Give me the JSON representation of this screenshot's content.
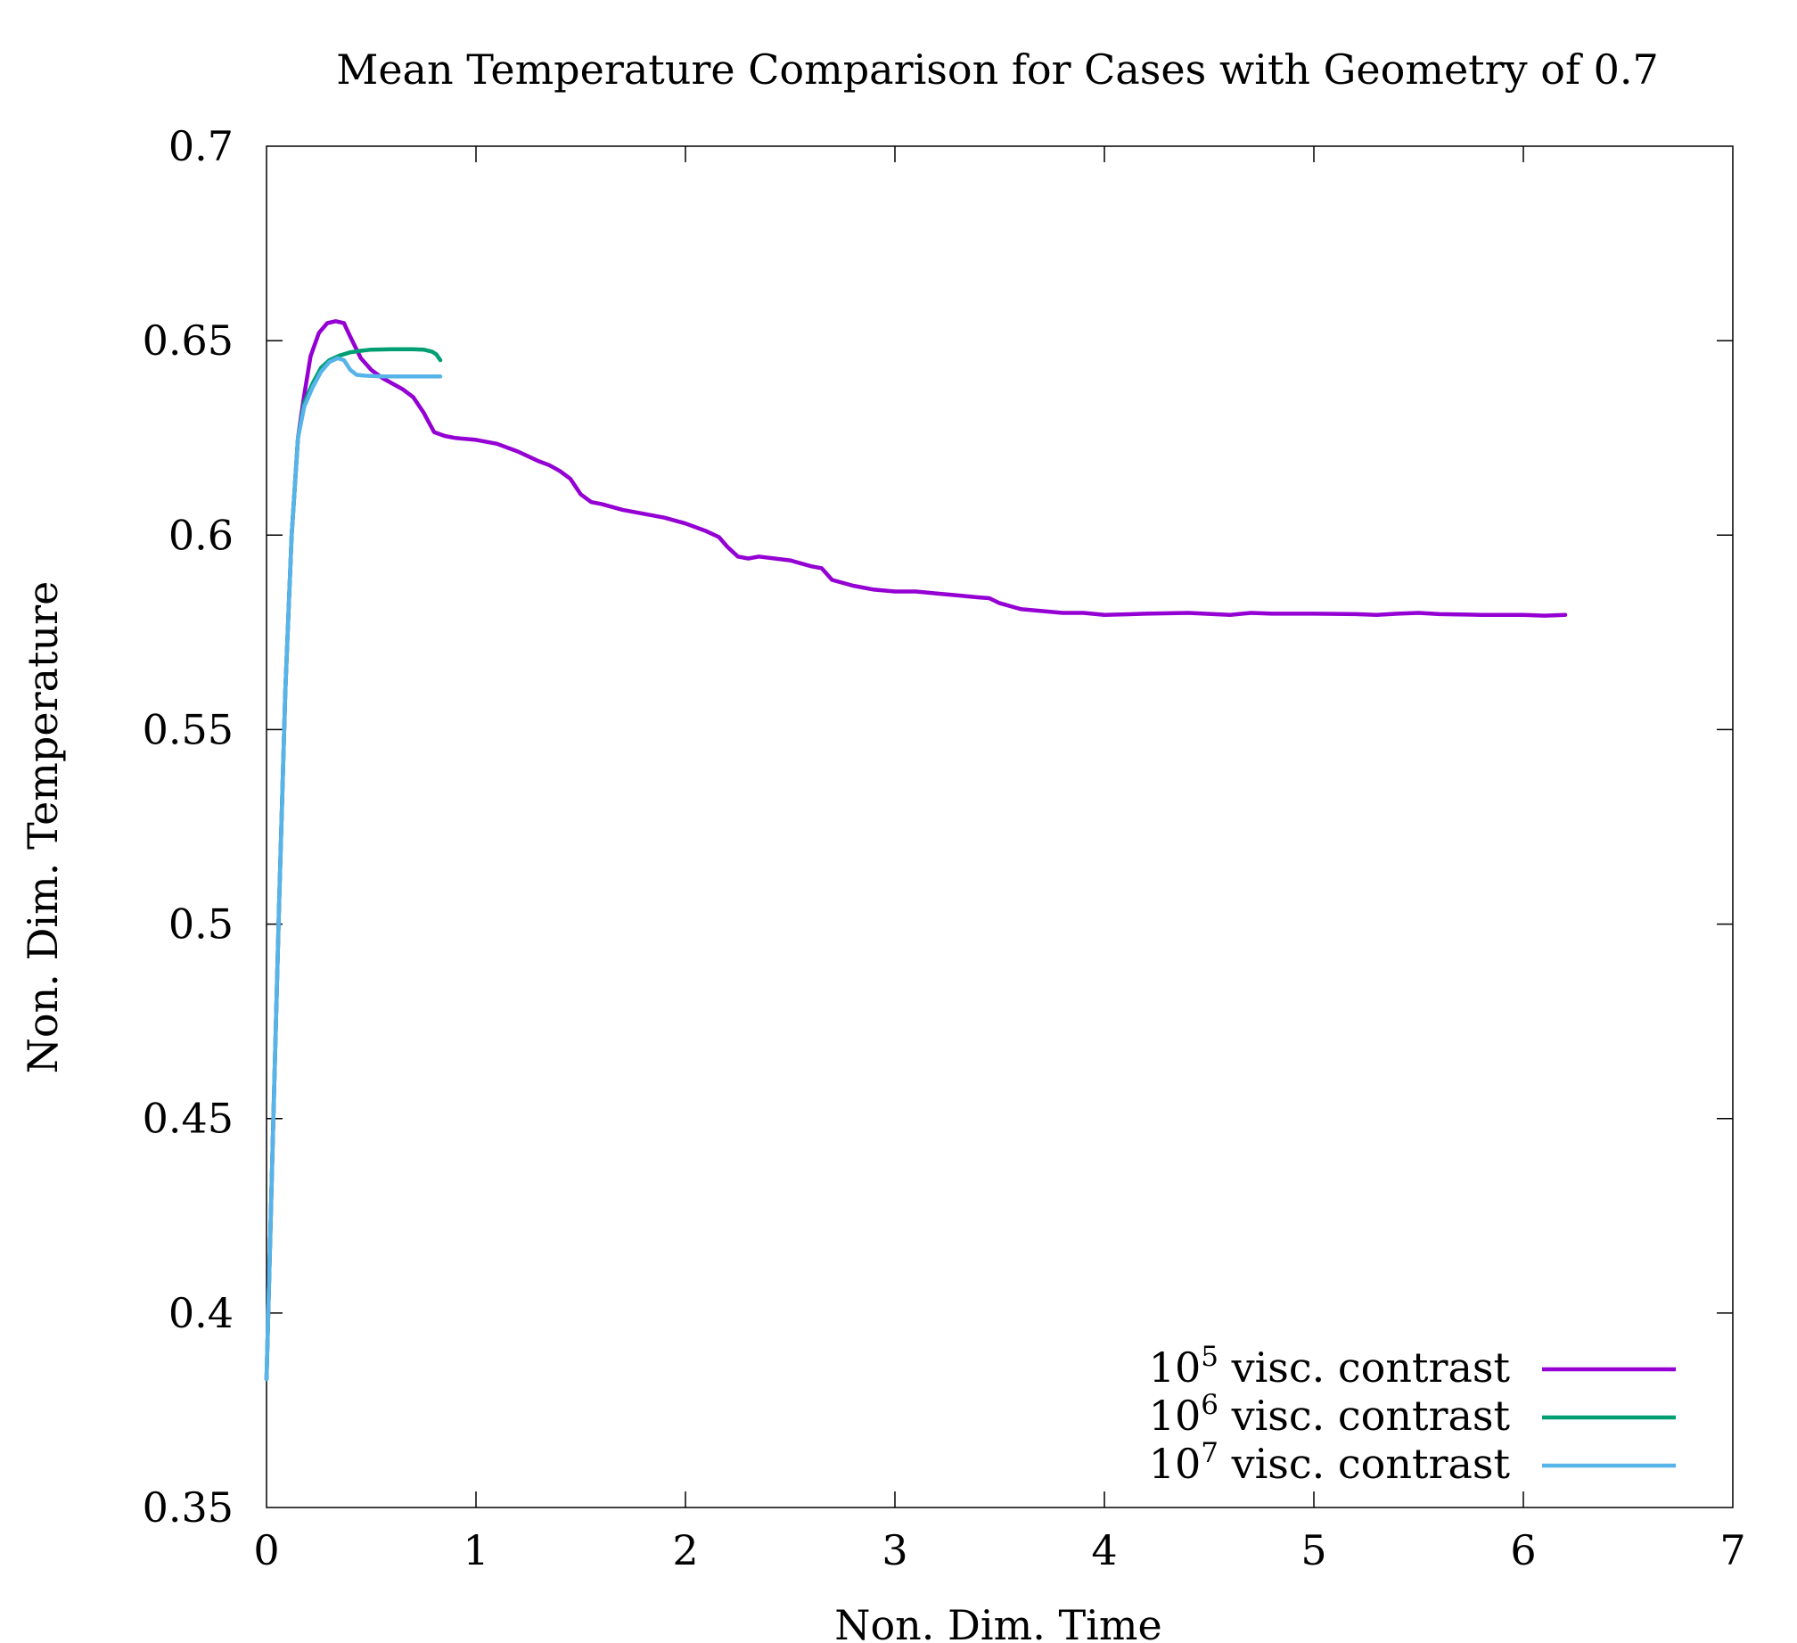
{
  "chart_data": {
    "type": "line",
    "title": "Mean Temperature Comparison for Cases with Geometry of 0.7",
    "xlabel": "Non. Dim. Time",
    "ylabel": "Non. Dim. Temperature",
    "xlim": [
      0,
      7
    ],
    "ylim": [
      0.35,
      0.7
    ],
    "x_ticks": [
      "0",
      "1",
      "2",
      "3",
      "4",
      "5",
      "6",
      "7"
    ],
    "x_tick_values": [
      0,
      1,
      2,
      3,
      4,
      5,
      6,
      7
    ],
    "y_ticks": [
      "0.35",
      "0.4",
      "0.45",
      "0.5",
      "0.55",
      "0.6",
      "0.65",
      "0.7"
    ],
    "y_tick_values": [
      0.35,
      0.4,
      0.45,
      0.5,
      0.55,
      0.6,
      0.65,
      0.7
    ],
    "grid": false,
    "legend_position": "bottom-right",
    "series": [
      {
        "name": "10^5 visc. contrast",
        "legend_base": "10",
        "legend_exponent": "5",
        "legend_text": " visc. contrast",
        "color": "#9400d3",
        "x": [
          0,
          0.03,
          0.06,
          0.09,
          0.12,
          0.15,
          0.18,
          0.21,
          0.25,
          0.29,
          0.33,
          0.37,
          0.4,
          0.45,
          0.5,
          0.55,
          0.6,
          0.65,
          0.7,
          0.75,
          0.8,
          0.85,
          0.9,
          1.0,
          1.1,
          1.2,
          1.3,
          1.35,
          1.4,
          1.45,
          1.5,
          1.55,
          1.6,
          1.7,
          1.8,
          1.9,
          2.0,
          2.1,
          2.16,
          2.2,
          2.25,
          2.3,
          2.35,
          2.5,
          2.6,
          2.65,
          2.7,
          2.8,
          2.9,
          3.0,
          3.1,
          3.2,
          3.3,
          3.4,
          3.45,
          3.5,
          3.6,
          3.7,
          3.8,
          3.9,
          4.0,
          4.2,
          4.4,
          4.6,
          4.7,
          4.8,
          5.0,
          5.2,
          5.3,
          5.4,
          5.5,
          5.6,
          5.8,
          6.0,
          6.1,
          6.2
        ],
        "values": [
          0.383,
          0.445,
          0.505,
          0.56,
          0.6,
          0.625,
          0.636,
          0.646,
          0.652,
          0.6545,
          0.655,
          0.6545,
          0.651,
          0.6455,
          0.6425,
          0.6405,
          0.639,
          0.6375,
          0.6355,
          0.6315,
          0.6265,
          0.6255,
          0.625,
          0.6245,
          0.6235,
          0.6215,
          0.619,
          0.618,
          0.6165,
          0.6145,
          0.6105,
          0.6085,
          0.608,
          0.6065,
          0.6055,
          0.6045,
          0.603,
          0.601,
          0.5995,
          0.597,
          0.5945,
          0.594,
          0.5945,
          0.5935,
          0.592,
          0.5915,
          0.5885,
          0.587,
          0.586,
          0.5855,
          0.5855,
          0.585,
          0.5845,
          0.584,
          0.5838,
          0.5825,
          0.581,
          0.5805,
          0.58,
          0.58,
          0.5795,
          0.5798,
          0.58,
          0.5795,
          0.58,
          0.5798,
          0.5798,
          0.5797,
          0.5795,
          0.5798,
          0.58,
          0.5797,
          0.5795,
          0.5795,
          0.5793,
          0.5795
        ]
      },
      {
        "name": "10^6 visc. contrast",
        "legend_base": "10",
        "legend_exponent": "6",
        "legend_text": " visc. contrast",
        "color": "#009e73",
        "x": [
          0,
          0.03,
          0.06,
          0.09,
          0.12,
          0.15,
          0.18,
          0.22,
          0.26,
          0.3,
          0.35,
          0.4,
          0.45,
          0.5,
          0.6,
          0.7,
          0.75,
          0.79,
          0.81,
          0.83
        ],
        "values": [
          0.383,
          0.445,
          0.505,
          0.56,
          0.6,
          0.625,
          0.634,
          0.639,
          0.643,
          0.645,
          0.6462,
          0.647,
          0.6474,
          0.6477,
          0.6478,
          0.6478,
          0.6477,
          0.6472,
          0.6465,
          0.645
        ]
      },
      {
        "name": "10^7 visc. contrast",
        "legend_base": "10",
        "legend_exponent": "7",
        "legend_text": " visc. contrast",
        "color": "#56b4e9",
        "x": [
          0,
          0.03,
          0.06,
          0.09,
          0.12,
          0.15,
          0.18,
          0.22,
          0.26,
          0.3,
          0.34,
          0.37,
          0.4,
          0.43,
          0.47,
          0.55,
          0.65,
          0.75,
          0.83
        ],
        "values": [
          0.383,
          0.445,
          0.505,
          0.56,
          0.6,
          0.625,
          0.633,
          0.638,
          0.642,
          0.6445,
          0.6455,
          0.645,
          0.6425,
          0.6412,
          0.641,
          0.6408,
          0.6408,
          0.6408,
          0.6408
        ]
      }
    ]
  }
}
